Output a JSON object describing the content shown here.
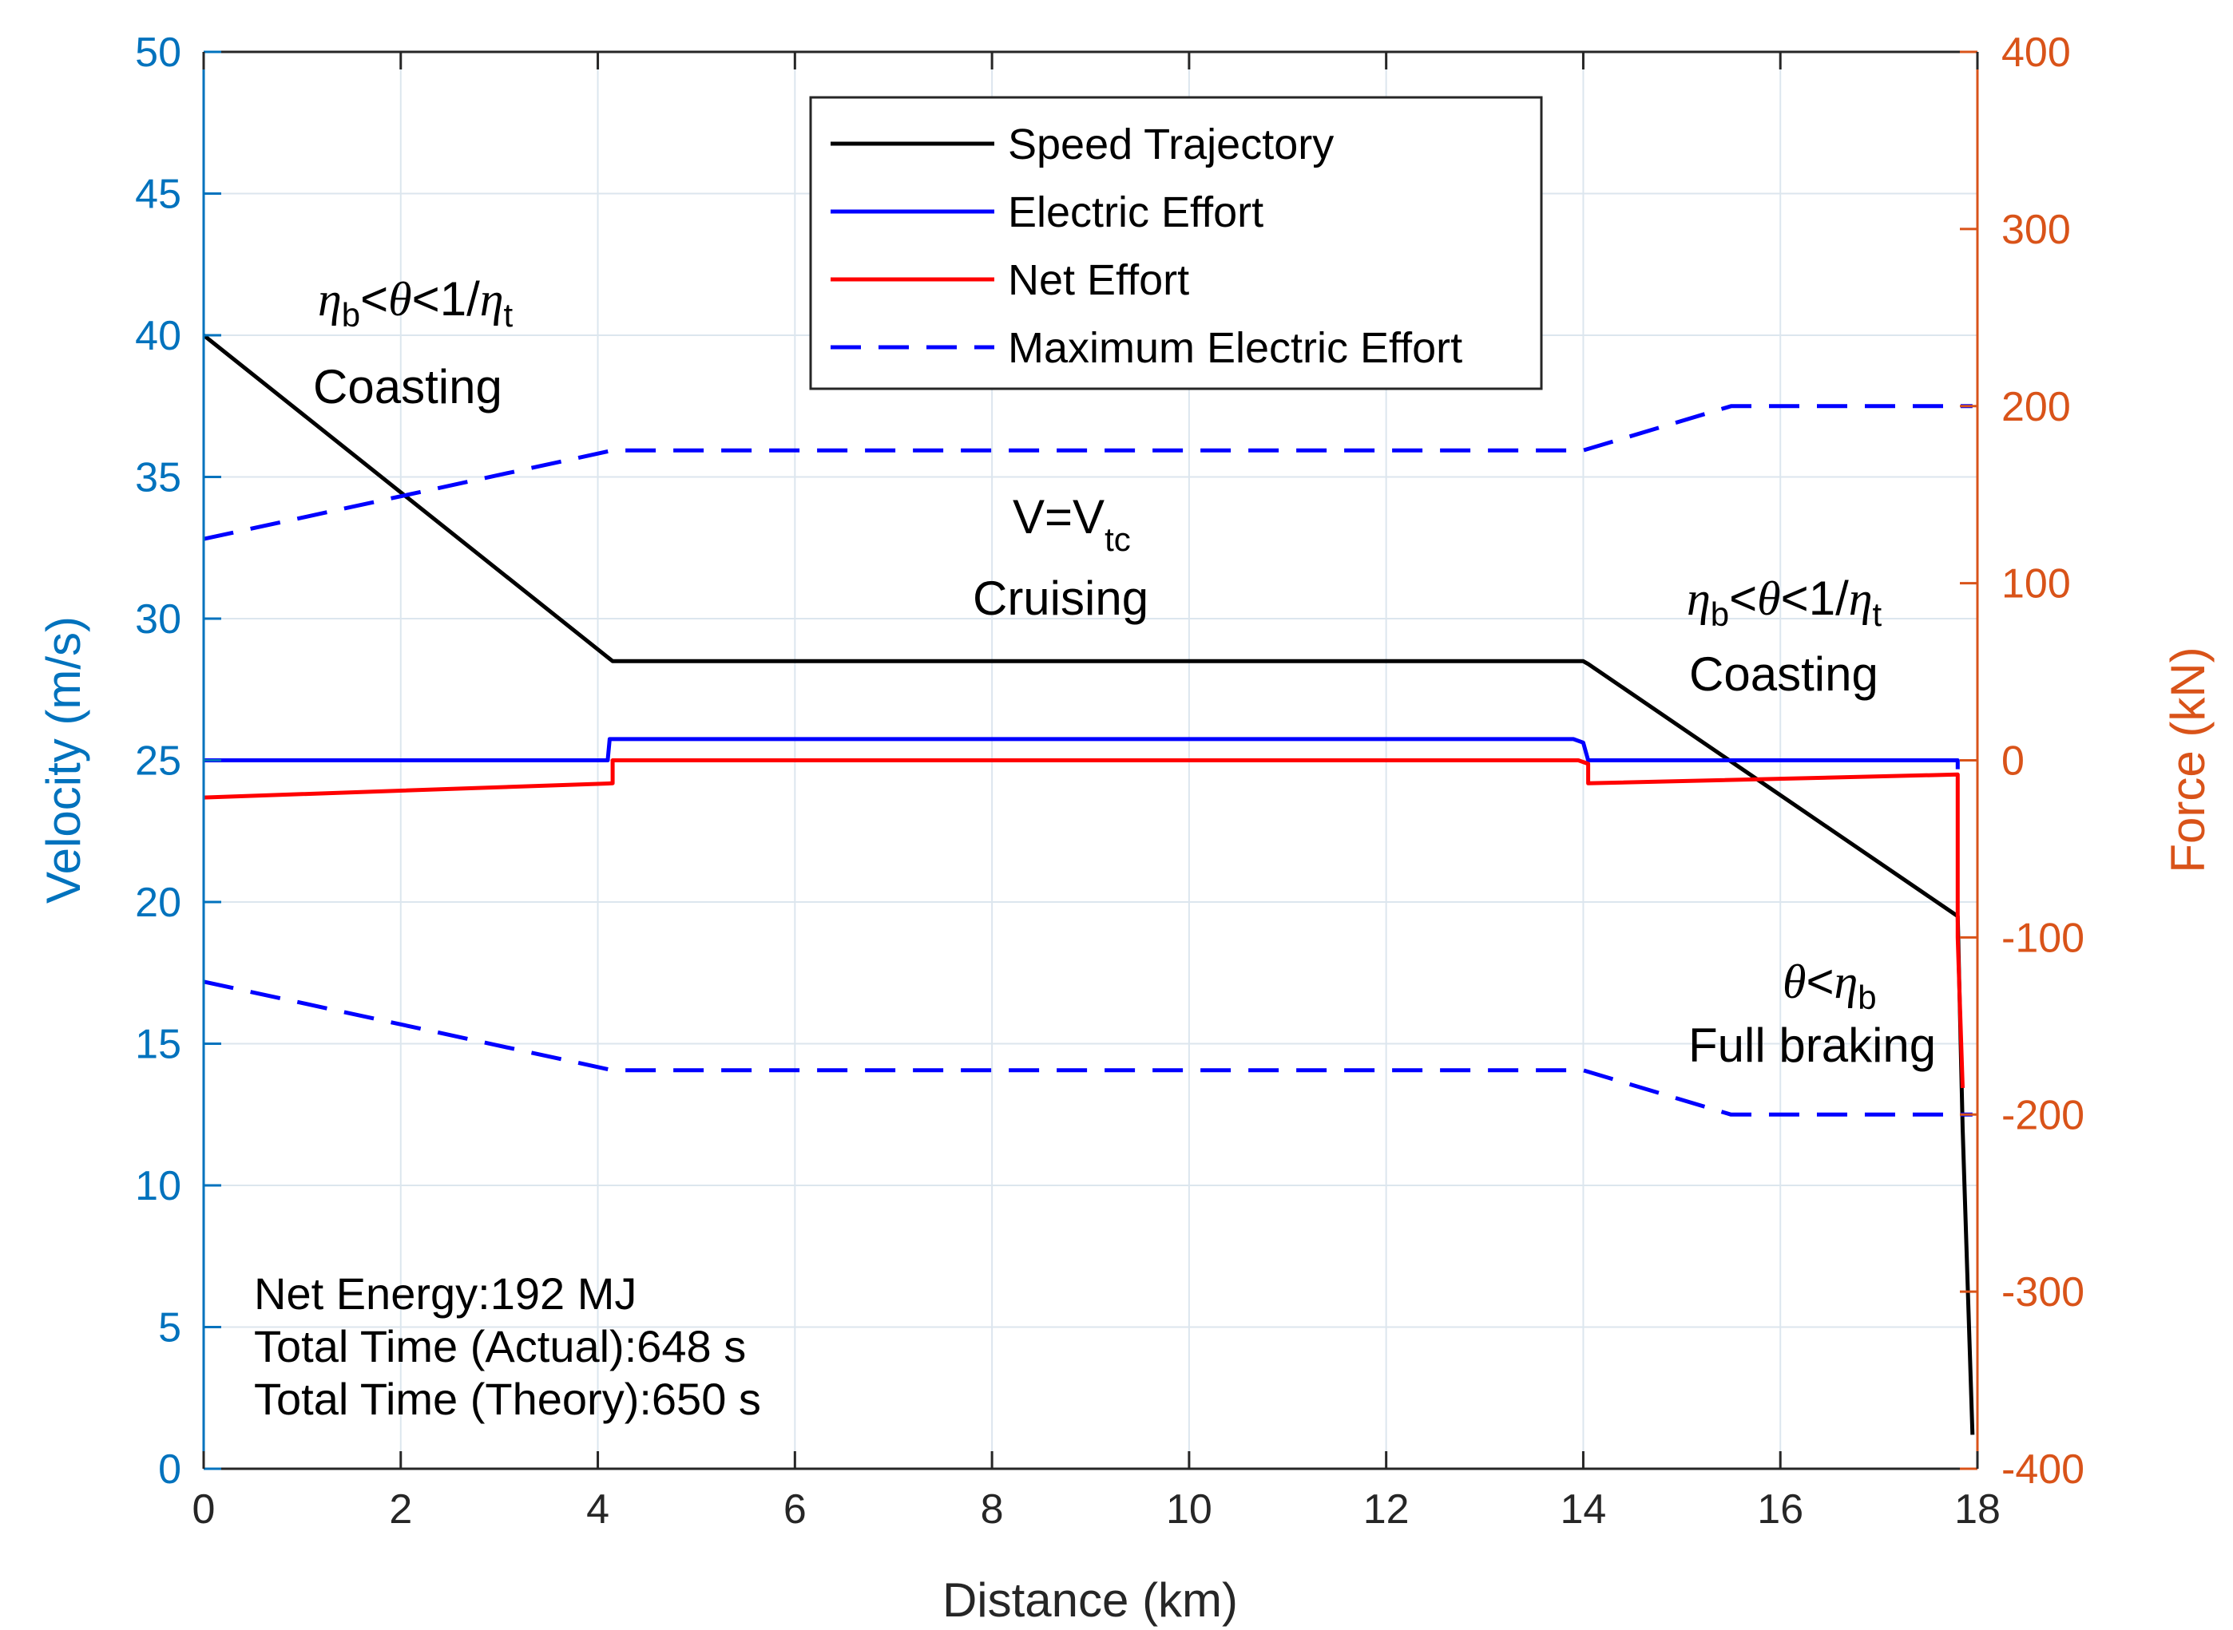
{
  "chart_data": {
    "type": "line",
    "xlabel": "Distance (km)",
    "ylabel_left": "Velocity (m/s)",
    "ylabel_right": "Force (kN)",
    "xlim": [
      0,
      18
    ],
    "ylim_left": [
      0,
      50
    ],
    "ylim_right": [
      -400,
      400
    ],
    "x_ticks": [
      "0",
      "2",
      "4",
      "6",
      "8",
      "10",
      "12",
      "14",
      "16",
      "18"
    ],
    "y_ticks_left": [
      "0",
      "5",
      "10",
      "15",
      "20",
      "25",
      "30",
      "35",
      "40",
      "45",
      "50"
    ],
    "y_ticks_right": [
      "-400",
      "-300",
      "-200",
      "-100",
      "0",
      "100",
      "200",
      "300",
      "400"
    ],
    "grid": true,
    "legend_position": "top-center",
    "series": [
      {
        "name": "Speed Trajectory",
        "axis": "left",
        "color": "#000000",
        "style": "solid",
        "x": [
          0,
          4.15,
          14.0,
          14.05,
          17.8,
          17.85,
          17.95
        ],
        "y": [
          40.0,
          28.5,
          28.5,
          28.4,
          19.5,
          12.0,
          1.2
        ]
      },
      {
        "name": "Electric Effort",
        "axis": "right",
        "color": "#0000FF",
        "style": "solid",
        "x": [
          0,
          4.1,
          4.12,
          13.9,
          14.0,
          14.05,
          17.8,
          17.8
        ],
        "y": [
          0,
          0,
          12,
          12,
          10,
          0,
          0,
          -5
        ]
      },
      {
        "name": "Net Effort",
        "axis": "right",
        "color": "#FF0000",
        "style": "solid",
        "x": [
          0,
          4.15,
          4.15,
          13.95,
          14.05,
          14.05,
          17.8,
          17.8,
          17.85
        ],
        "y": [
          -21,
          -13,
          0,
          0,
          -2,
          -13,
          -8,
          -100,
          -185
        ]
      },
      {
        "name": "Maximum Electric Effort",
        "axis": "right",
        "color": "#0000FF",
        "style": "dashed",
        "x": [
          0,
          4.15,
          14.0,
          15.5,
          17.95
        ],
        "y": [
          125,
          175,
          175,
          200,
          200
        ]
      },
      {
        "name": "Maximum Electric Effort (lower)",
        "axis": "right",
        "color": "#0000FF",
        "style": "dashed",
        "x": [
          0,
          4.15,
          14.0,
          15.5,
          17.95
        ],
        "y": [
          -125,
          -175,
          -175,
          -200,
          -200
        ]
      }
    ],
    "legend": [
      {
        "label": "Speed Trajectory",
        "color": "#000000",
        "style": "solid"
      },
      {
        "label": "Electric Effort",
        "color": "#0000FF",
        "style": "solid"
      },
      {
        "label": "Net Effort",
        "color": "#FF0000",
        "style": "solid"
      },
      {
        "label": "Maximum Electric Effort",
        "color": "#0000FF",
        "style": "dashed"
      }
    ],
    "annotations": {
      "coasting1_cond": {
        "eta_b": "η",
        "sub_b": "b",
        "lt1": "<",
        "theta": "θ",
        "lt2": "<1/",
        "eta_t": "η",
        "sub_t": "t"
      },
      "coasting1_label": "Coasting",
      "cruising_cond": {
        "v": "V=V",
        "sub_tc": "tc"
      },
      "cruising_label": "Cruising",
      "coasting2_cond": {
        "eta_b": "η",
        "sub_b": "b",
        "lt1": "<",
        "theta": "θ",
        "lt2": "<1/",
        "eta_t": "η",
        "sub_t": "t"
      },
      "coasting2_label": "Coasting",
      "braking_cond": {
        "theta": "θ",
        "lt": "<",
        "eta_b": "η",
        "sub_b": "b"
      },
      "braking_label": "Full braking"
    },
    "info_lines": [
      "Net Energy:192 MJ",
      "Total Time (Actual):648 s",
      "Total Time (Theory):650 s"
    ]
  },
  "colors": {
    "left_axis": "#0072BD",
    "right_axis": "#D95319",
    "grid": "#DCE6EE"
  }
}
